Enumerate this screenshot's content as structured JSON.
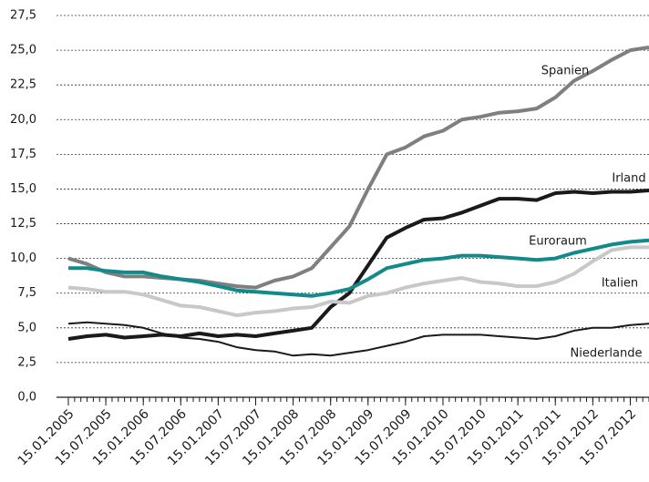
{
  "chart_data": {
    "type": "line",
    "categories": [
      "15.01.2005",
      null,
      "15.07.2005",
      null,
      "15.01.2006",
      null,
      "15.07.2006",
      null,
      "15.01.2007",
      null,
      "15.07.2007",
      null,
      "15.01.2008",
      null,
      "15.07.2008",
      null,
      "15.01.2009",
      null,
      "15.07.2009",
      null,
      "15.01.2010",
      null,
      "15.07.2010",
      null,
      "15.01.2011",
      null,
      "15.07.2011",
      null,
      "15.01.2012",
      null,
      "15.07.2012",
      null
    ],
    "series": [
      {
        "name": "Spanien",
        "color": "#7f7f7f",
        "line_width": 4,
        "values": [
          10.0,
          9.6,
          9.0,
          8.7,
          8.7,
          8.6,
          8.5,
          8.4,
          8.2,
          8.0,
          7.9,
          8.4,
          8.7,
          9.3,
          10.8,
          12.3,
          15.0,
          17.5,
          18.0,
          18.8,
          19.2,
          20.0,
          20.2,
          20.5,
          20.6,
          20.8,
          21.6,
          22.8,
          23.5,
          24.3,
          25.0,
          25.2
        ]
      },
      {
        "name": "Irland",
        "color": "#1a1a1a",
        "line_width": 4,
        "values": [
          4.2,
          4.4,
          4.5,
          4.3,
          4.4,
          4.5,
          4.4,
          4.6,
          4.4,
          4.5,
          4.4,
          4.6,
          4.8,
          5.0,
          6.5,
          7.5,
          9.5,
          11.5,
          12.2,
          12.8,
          12.9,
          13.3,
          13.8,
          14.3,
          14.3,
          14.2,
          14.7,
          14.8,
          14.7,
          14.8,
          14.8,
          14.9
        ]
      },
      {
        "name": "Euroraum",
        "color": "#138a8a",
        "line_width": 4,
        "values": [
          9.3,
          9.3,
          9.1,
          9.0,
          9.0,
          8.7,
          8.5,
          8.3,
          8.0,
          7.7,
          7.6,
          7.5,
          7.4,
          7.3,
          7.5,
          7.8,
          8.5,
          9.3,
          9.6,
          9.9,
          10.0,
          10.2,
          10.2,
          10.1,
          10.0,
          9.9,
          10.0,
          10.4,
          10.7,
          11.0,
          11.2,
          11.3
        ]
      },
      {
        "name": "Italien",
        "color": "#c8c8c8",
        "line_width": 4,
        "values": [
          7.9,
          7.8,
          7.6,
          7.6,
          7.4,
          7.0,
          6.6,
          6.5,
          6.2,
          5.9,
          6.1,
          6.2,
          6.4,
          6.5,
          6.9,
          6.8,
          7.3,
          7.5,
          7.9,
          8.2,
          8.4,
          8.6,
          8.3,
          8.2,
          8.0,
          8.0,
          8.3,
          8.9,
          9.8,
          10.6,
          10.8,
          10.8
        ]
      },
      {
        "name": "Niederlande",
        "color": "#1a1a1a",
        "line_width": 2,
        "values": [
          5.3,
          5.4,
          5.3,
          5.2,
          5.0,
          4.6,
          4.3,
          4.2,
          4.0,
          3.6,
          3.4,
          3.3,
          3.0,
          3.1,
          3.0,
          3.2,
          3.4,
          3.7,
          4.0,
          4.4,
          4.5,
          4.5,
          4.5,
          4.4,
          4.3,
          4.2,
          4.4,
          4.8,
          5.0,
          5.0,
          5.2,
          5.3
        ]
      }
    ],
    "ylim": [
      0,
      27.5
    ],
    "yticks": [
      {
        "value": 0,
        "label": "0,0"
      },
      {
        "value": 2.5,
        "label": "2,5"
      },
      {
        "value": 5,
        "label": "5,0"
      },
      {
        "value": 7.5,
        "label": "7,5"
      },
      {
        "value": 10,
        "label": "10,0"
      },
      {
        "value": 12.5,
        "label": "12,5"
      },
      {
        "value": 15,
        "label": "15,0"
      },
      {
        "value": 17.5,
        "label": "17,5"
      },
      {
        "value": 20,
        "label": "20,0"
      },
      {
        "value": 22.5,
        "label": "22,5"
      },
      {
        "value": 25,
        "label": "25,0"
      },
      {
        "value": 27.5,
        "label": "27,5"
      }
    ],
    "grid": true
  }
}
